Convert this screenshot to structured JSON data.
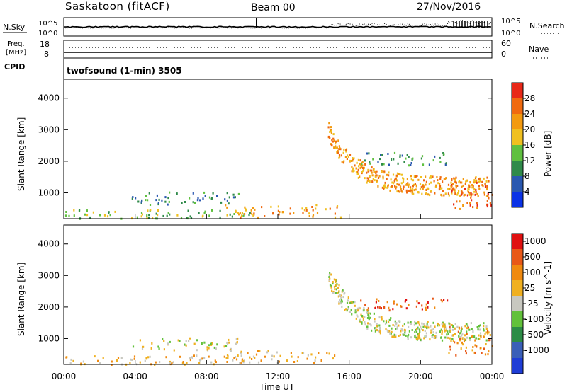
{
  "header": {
    "station": "Saskatoon (fitACF)",
    "beam": "Beam 00",
    "date": "27/Nov/2016"
  },
  "upper_panel": {
    "left_label": "N.Sky",
    "right_label": "N.Search",
    "left_ticks": [
      "10^5",
      "10^0"
    ],
    "right_ticks": [
      "10^5",
      "10^0"
    ]
  },
  "freq_panel": {
    "left_label_line1": "Freq.",
    "left_label_line2": "[MHz]",
    "right_label": "Nave",
    "left_ticks": [
      "18",
      "8"
    ],
    "right_ticks": [
      "60",
      "0"
    ]
  },
  "cpid": {
    "label": "CPID",
    "text": "twofsound (1-min) 3505"
  },
  "x_axis": {
    "label": "Time UT",
    "ticks": [
      "00:00",
      "04:00",
      "08:00",
      "12:00",
      "16:00",
      "20:00",
      "00:00"
    ]
  },
  "colors": {
    "power_scale": [
      "#0a32e6",
      "#2a58b0",
      "#2f8a4a",
      "#60c040",
      "#f0c020",
      "#f39a10",
      "#f06a10",
      "#e82818"
    ],
    "velocity_scale": [
      "#1f3dd6",
      "#3a5fb8",
      "#2c8c46",
      "#62c13a",
      "#c8c8c0",
      "#f0b020",
      "#f08a10",
      "#e85818",
      "#e01010"
    ]
  },
  "chart_data": [
    {
      "type": "heatmap",
      "name": "power",
      "ylabel": "Slant Range [km]",
      "yticks": [
        1000,
        2000,
        3000,
        4000
      ],
      "ylim": [
        180,
        4600
      ],
      "xlim_hours": [
        0,
        24
      ],
      "colorbar_label": "Power [dB]",
      "colorbar_ticks": [
        "4",
        "8",
        "12",
        "16",
        "20",
        "24",
        "28"
      ],
      "features": [
        {
          "t0": 0.0,
          "t1": 10.5,
          "r0": 200,
          "r1": 500,
          "level": 3
        },
        {
          "t0": 3.8,
          "t1": 9.8,
          "r0": 650,
          "r1": 1050,
          "level": 2
        },
        {
          "t0": 9.0,
          "t1": 15.5,
          "r0": 250,
          "r1": 650,
          "level": 5
        },
        {
          "t0": 14.8,
          "t1": 23.8,
          "r0": 1100,
          "r1": 3000,
          "level": 5
        },
        {
          "t0": 16.5,
          "t1": 21.5,
          "r0": 1900,
          "r1": 2300,
          "level": 2
        },
        {
          "t0": 21.5,
          "t1": 24.0,
          "r0": 500,
          "r1": 1400,
          "level": 6
        }
      ]
    },
    {
      "type": "heatmap",
      "name": "velocity",
      "ylabel": "Slant Range [km]",
      "yticks": [
        1000,
        2000,
        3000,
        4000
      ],
      "ylim": [
        180,
        4600
      ],
      "xlim_hours": [
        0,
        24
      ],
      "colorbar_label": "Velocity [m s^-1]",
      "colorbar_ticks": [
        "1000",
        "500",
        "100",
        "25",
        "-25",
        "-100",
        "-500",
        "-1000"
      ],
      "features": [
        {
          "t0": 0.0,
          "t1": 10.5,
          "r0": 200,
          "r1": 500,
          "level": 5
        },
        {
          "t0": 3.8,
          "t1": 9.8,
          "r0": 650,
          "r1": 1050,
          "level": 4
        },
        {
          "t0": 9.0,
          "t1": 15.5,
          "r0": 250,
          "r1": 650,
          "level": 5
        },
        {
          "t0": 14.8,
          "t1": 23.8,
          "r0": 1100,
          "r1": 3000,
          "level": 4
        },
        {
          "t0": 16.5,
          "t1": 21.5,
          "r0": 1900,
          "r1": 2300,
          "level": 7
        },
        {
          "t0": 21.5,
          "t1": 24.0,
          "r0": 500,
          "r1": 1400,
          "level": 6
        }
      ]
    }
  ]
}
